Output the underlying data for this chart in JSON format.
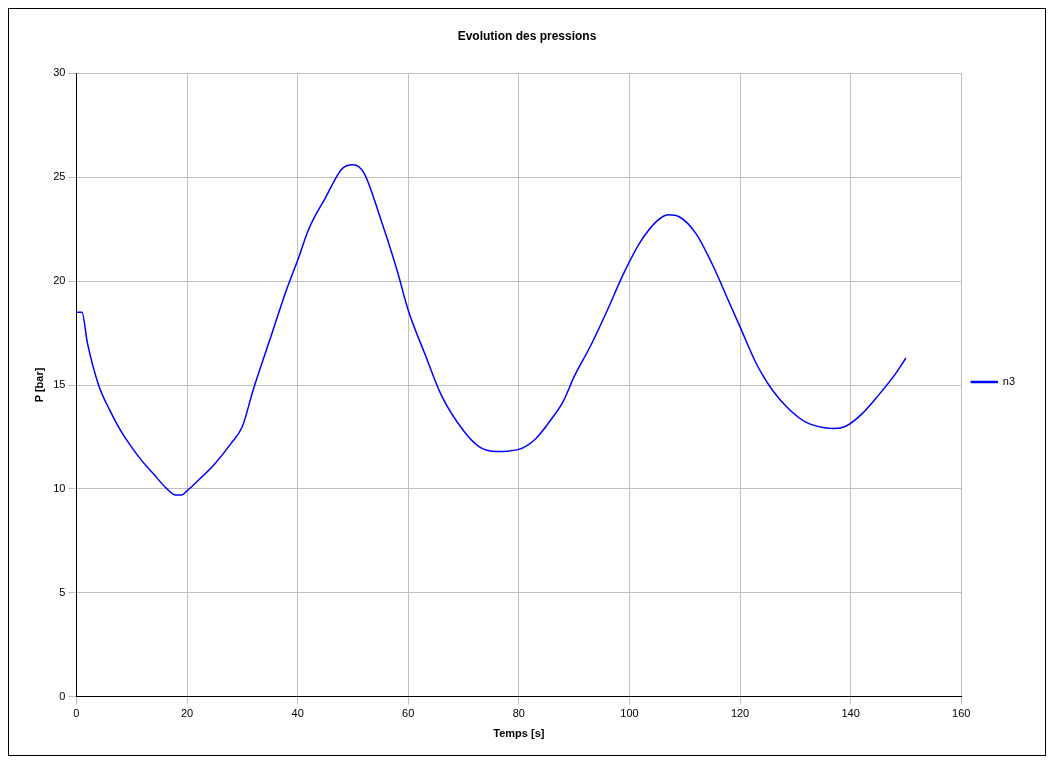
{
  "chart_data": {
    "type": "line",
    "title": "Evolution des pressions",
    "xlabel": "Temps [s]",
    "ylabel": "P [bar]",
    "xlim": [
      0,
      160
    ],
    "xticks": [
      0,
      20,
      40,
      60,
      80,
      100,
      120,
      140,
      160
    ],
    "ylim": [
      0,
      30
    ],
    "yticks": [
      0,
      5,
      10,
      15,
      20,
      25,
      30
    ],
    "grid": true,
    "legend": "right",
    "marker": "none",
    "line_style": "solid",
    "series": [
      {
        "name": "n3",
        "color": "#0000ff",
        "x": [
          0,
          1,
          2,
          4,
          6,
          8,
          10,
          12,
          14,
          16,
          18,
          19,
          20,
          22,
          25,
          28,
          30,
          32,
          35,
          38,
          40,
          42,
          45,
          48,
          50,
          52,
          55,
          58,
          60,
          63,
          66,
          70,
          73,
          76,
          80,
          83,
          86,
          88,
          90,
          93,
          96,
          99,
          102,
          105,
          107,
          109,
          112,
          115,
          118,
          120,
          123,
          126,
          129,
          132,
          135,
          137,
          139,
          142,
          145,
          148,
          150
        ],
        "values": [
          18.5,
          18.5,
          17,
          15,
          13.8,
          12.8,
          12,
          11.3,
          10.7,
          10.1,
          9.7,
          9.7,
          9.9,
          10.4,
          11.2,
          12.2,
          13,
          14.8,
          17.2,
          19.6,
          21,
          22.5,
          24,
          25.4,
          25.6,
          25.2,
          23,
          20.5,
          18.6,
          16.5,
          14.5,
          12.8,
          12,
          11.8,
          11.9,
          12.4,
          13.4,
          14.2,
          15.4,
          16.9,
          18.6,
          20.4,
          21.9,
          22.9,
          23.2,
          23.1,
          22.3,
          20.8,
          19,
          17.8,
          16,
          14.7,
          13.8,
          13.2,
          12.95,
          12.9,
          13,
          13.6,
          14.5,
          15.5,
          16.3
        ]
      }
    ]
  }
}
